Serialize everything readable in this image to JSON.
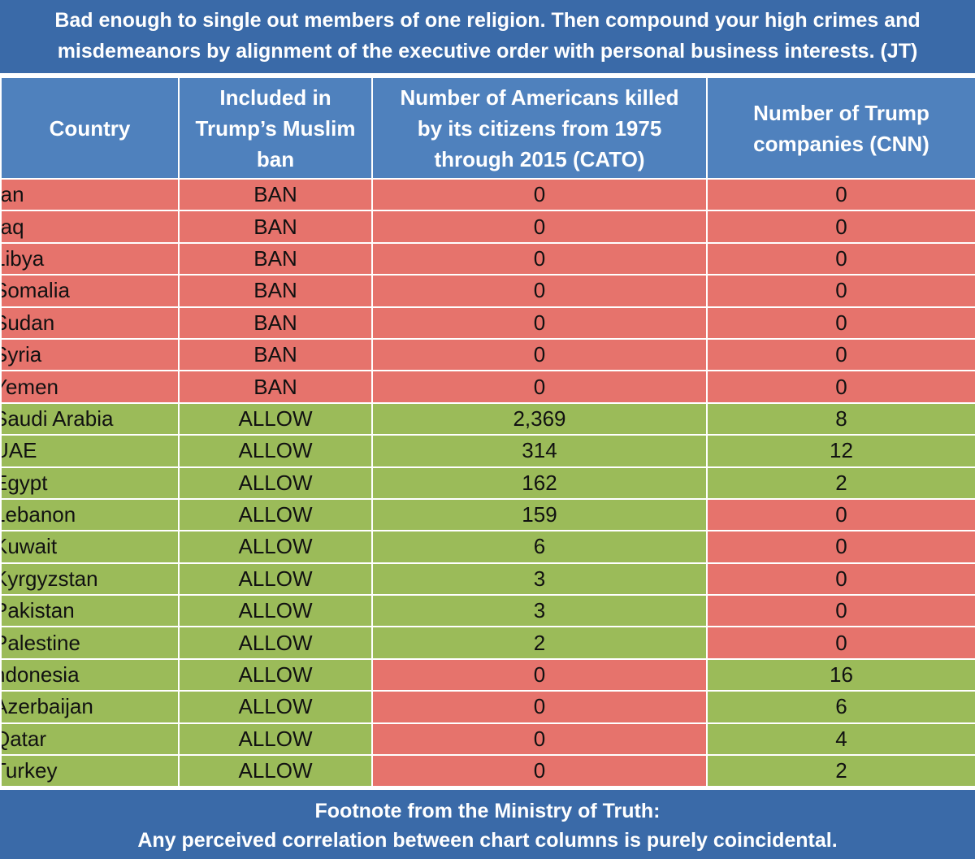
{
  "banner": {
    "line1": "Bad enough to single out members of one religion.  Then compound your high crimes and",
    "line2": "misdemeanors by alignment of the executive order with personal business interests. (JT)"
  },
  "footer": {
    "line1": "Footnote from the Ministry of Truth:",
    "line2": "Any perceived correlation between chart columns is purely coincidental."
  },
  "colors": {
    "header_bg": "#4f81bd",
    "banner_bg": "#3a6aa8",
    "red": "#e6736c",
    "green": "#9bbb59"
  },
  "chart_data": {
    "type": "table",
    "columns": [
      "Country",
      "Included in Trump’s Muslim ban",
      "Number of Americans killed by its citizens from 1975 through 2015  (CATO)",
      "Number of Trump companies  (CNN)"
    ],
    "column_lines": [
      [
        "Country"
      ],
      [
        "Included in",
        "Trump’s Muslim",
        "ban"
      ],
      [
        "Number of Americans killed",
        "by its citizens from 1975",
        "through 2015  (CATO)"
      ],
      [
        "Number of Trump",
        "companies  (CNN)"
      ]
    ],
    "rows": [
      {
        "country": "ran",
        "status": "BAN",
        "killed": "0",
        "companies": "0"
      },
      {
        "country": "raq",
        "status": "BAN",
        "killed": "0",
        "companies": "0"
      },
      {
        "country": "Libya",
        "status": "BAN",
        "killed": "0",
        "companies": "0"
      },
      {
        "country": "Somalia",
        "status": "BAN",
        "killed": "0",
        "companies": "0"
      },
      {
        "country": "Sudan",
        "status": "BAN",
        "killed": "0",
        "companies": "0"
      },
      {
        "country": "Syria",
        "status": "BAN",
        "killed": "0",
        "companies": "0"
      },
      {
        "country": "Yemen",
        "status": "BAN",
        "killed": "0",
        "companies": "0"
      },
      {
        "country": "Saudi Arabia",
        "status": "ALLOW",
        "killed": "2,369",
        "companies": "8"
      },
      {
        "country": "UAE",
        "status": "ALLOW",
        "killed": "314",
        "companies": "12"
      },
      {
        "country": "Egypt",
        "status": "ALLOW",
        "killed": "162",
        "companies": "2"
      },
      {
        "country": "Lebanon",
        "status": "ALLOW",
        "killed": "159",
        "companies": "0"
      },
      {
        "country": "Kuwait",
        "status": "ALLOW",
        "killed": "6",
        "companies": "0"
      },
      {
        "country": "Kyrgyzstan",
        "status": "ALLOW",
        "killed": "3",
        "companies": "0"
      },
      {
        "country": "Pakistan",
        "status": "ALLOW",
        "killed": "3",
        "companies": "0"
      },
      {
        "country": "Palestine",
        "status": "ALLOW",
        "killed": "2",
        "companies": "0"
      },
      {
        "country": "ndonesia",
        "status": "ALLOW",
        "killed": "0",
        "companies": "16"
      },
      {
        "country": "Azerbaijan",
        "status": "ALLOW",
        "killed": "0",
        "companies": "6"
      },
      {
        "country": "Qatar",
        "status": "ALLOW",
        "killed": "0",
        "companies": "4"
      },
      {
        "country": "Turkey",
        "status": "ALLOW",
        "killed": "0",
        "companies": "2"
      }
    ]
  }
}
